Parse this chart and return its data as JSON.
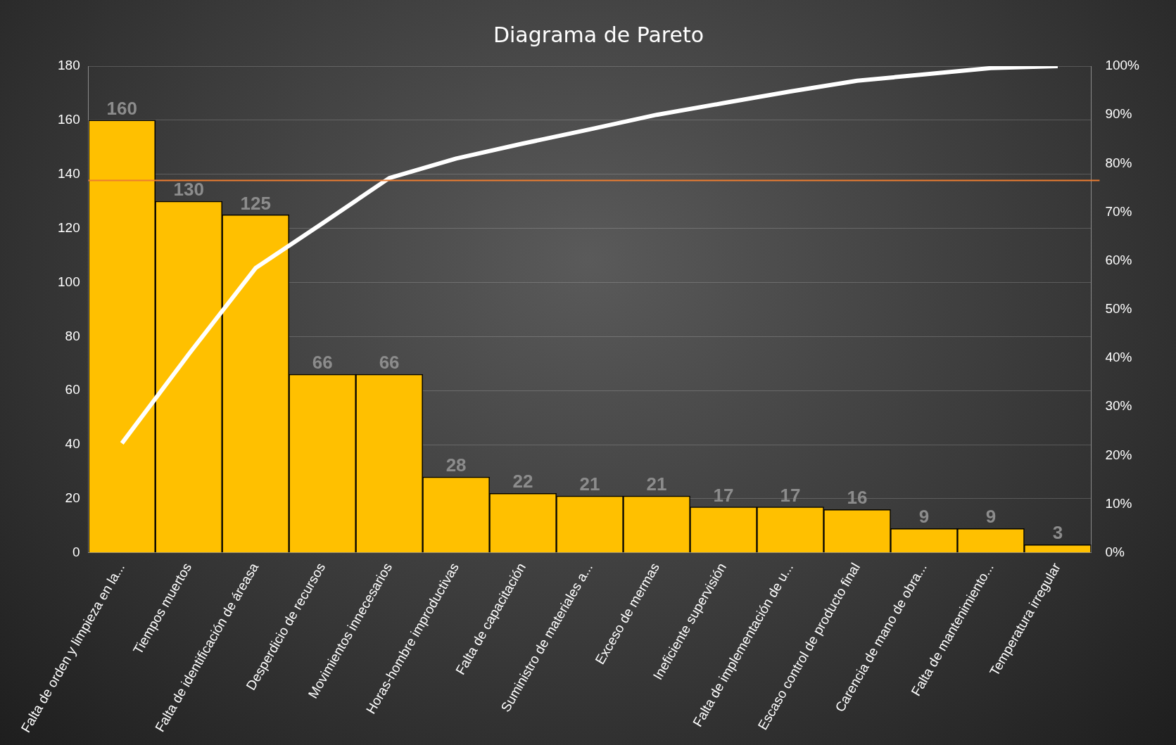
{
  "chart_data": {
    "type": "bar",
    "title": "Diagrama de Pareto",
    "categories": [
      "Falta de orden y limpieza en la...",
      "Tiempos muertos",
      "Falta de identificación de áreasa",
      "Desperdicio de recursos",
      "Movimientos innecesarios",
      "Horas-hombre improductivas",
      "Falta de capacitación",
      "Suministro de materiales a...",
      "Exceso de mermas",
      "Ineficiente supervisión",
      "Falta de implementación de u...",
      "Escaso control de producto final",
      "Carencia de mano de obra...",
      "Falta de mantenimiento...",
      "Temperatura irregular"
    ],
    "series": [
      {
        "color": "#ffc000",
        "values": [
          160,
          130,
          125,
          66,
          66,
          28,
          22,
          21,
          21,
          17,
          17,
          16,
          9,
          9,
          3
        ],
        "value_labels": [
          "160",
          "130",
          "125",
          "66",
          "66",
          "28",
          "22",
          "21",
          "21",
          "17",
          "17",
          "16",
          "9",
          "9",
          "3"
        ]
      },
      {
        "type": "line",
        "axis": "y2",
        "color": "#ffffff",
        "marker": "none",
        "values": [
          22.5,
          40.8,
          58.5,
          67.7,
          77.0,
          81.0,
          84.1,
          87.0,
          90.0,
          92.4,
          94.8,
          97.0,
          98.3,
          99.6,
          100
        ]
      }
    ],
    "ylim": [
      0,
      180
    ],
    "yticks": [
      0,
      20,
      40,
      60,
      80,
      100,
      120,
      140,
      160,
      180
    ],
    "y2lim": [
      0,
      100
    ],
    "y2ticks": [
      {
        "value": 0,
        "label": "0%"
      },
      {
        "value": 10,
        "label": "10%"
      },
      {
        "value": 20,
        "label": "20%"
      },
      {
        "value": 30,
        "label": "30%"
      },
      {
        "value": 40,
        "label": "40%"
      },
      {
        "value": 50,
        "label": "50%"
      },
      {
        "value": 60,
        "label": "60%"
      },
      {
        "value": 70,
        "label": "70%"
      },
      {
        "value": 80,
        "label": "80%"
      },
      {
        "value": 90,
        "label": "90%"
      },
      {
        "value": 100,
        "label": "100%"
      }
    ],
    "grid": "y",
    "legend": false,
    "ref_lines": [
      {
        "axis": "y2",
        "value": 76.5,
        "color": "#ed7d31"
      }
    ]
  }
}
